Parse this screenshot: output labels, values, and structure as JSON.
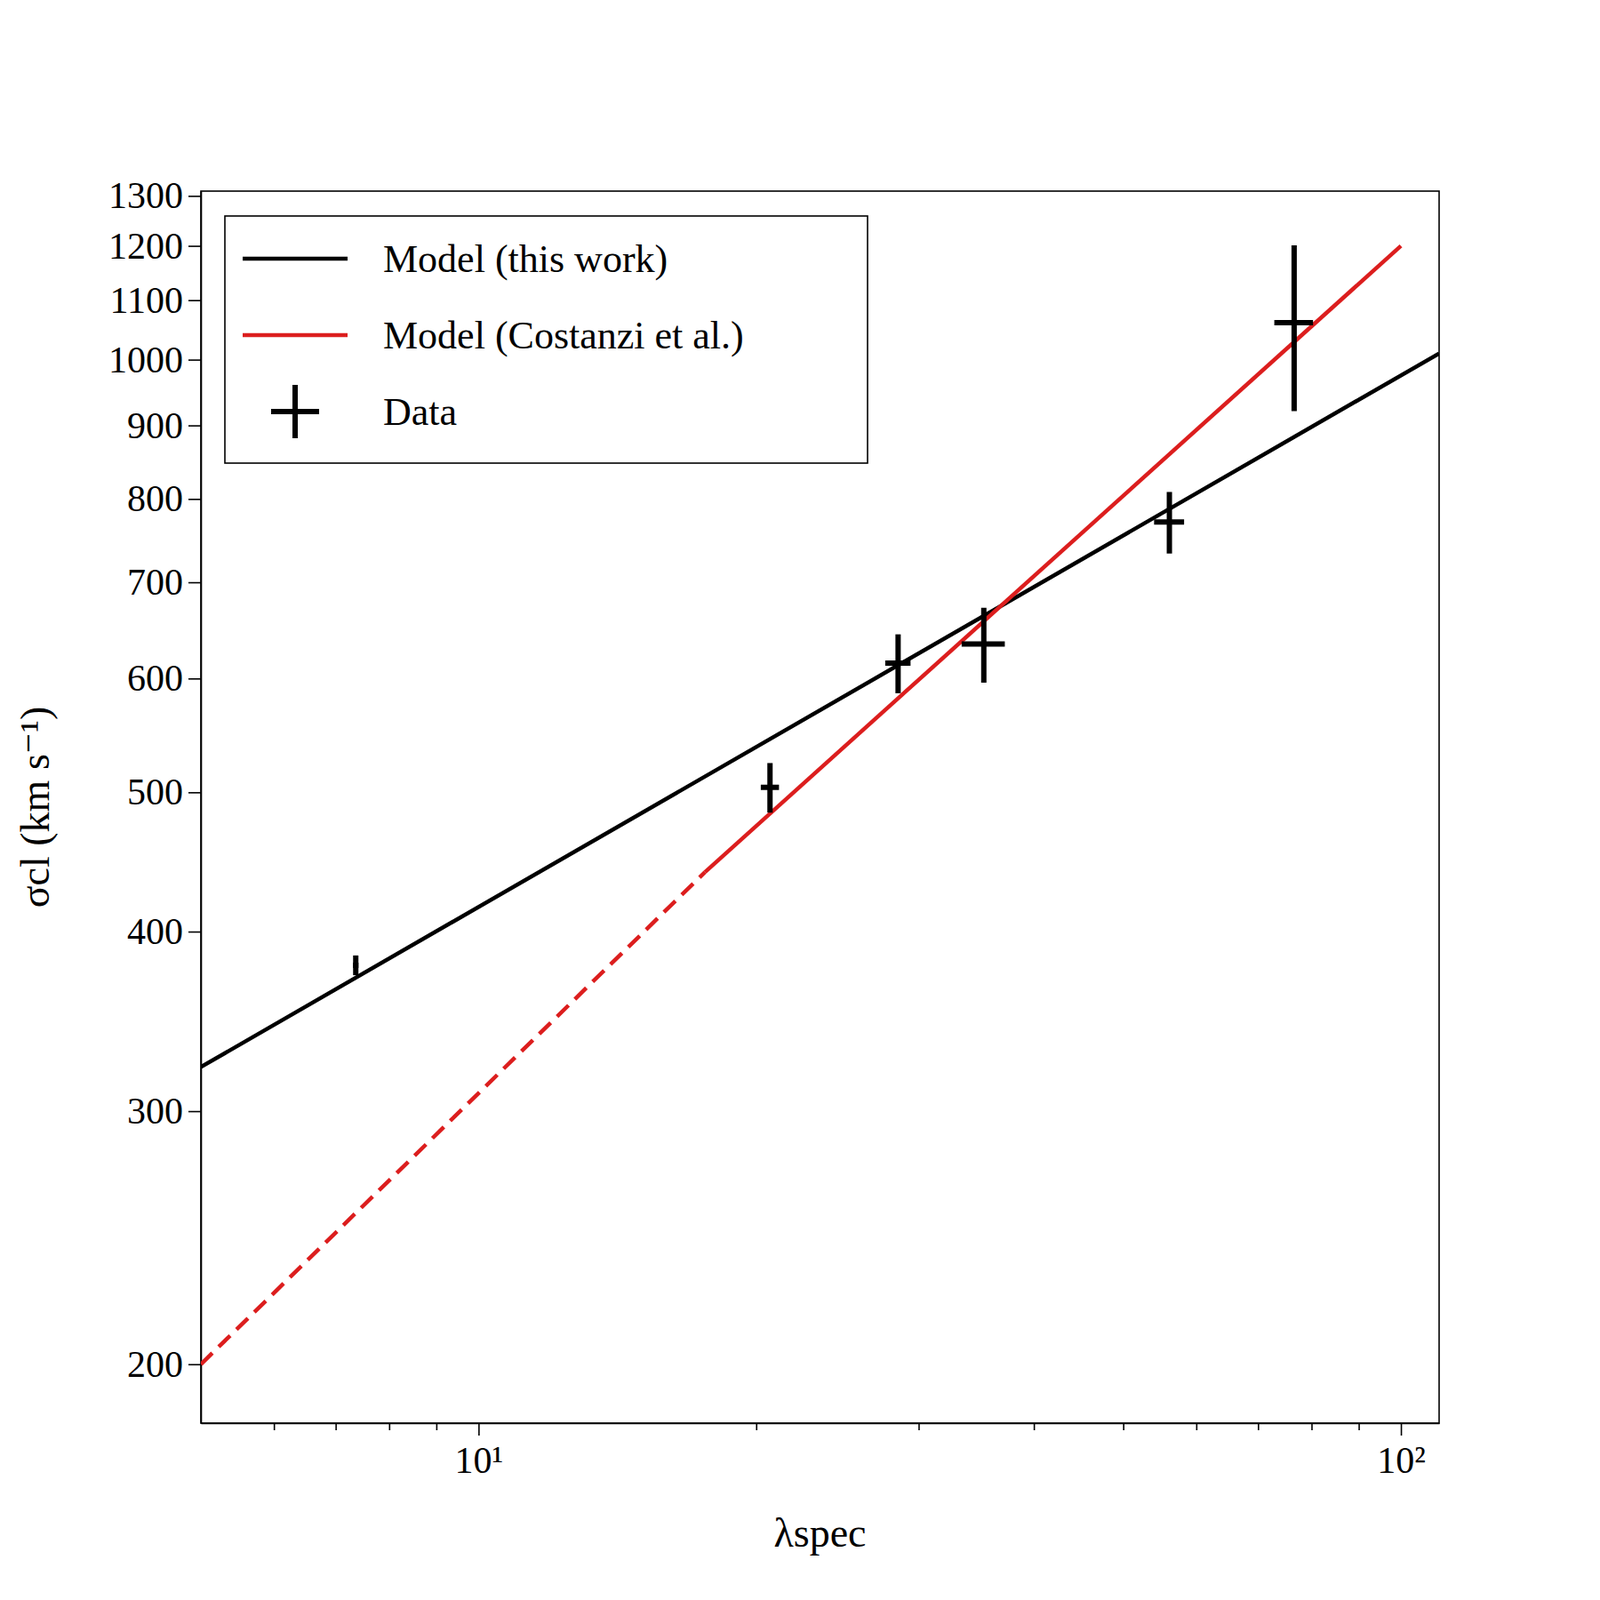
{
  "chart_data": {
    "type": "scatter",
    "xlabel": "λspec",
    "ylabel": "σcl (km s⁻¹)",
    "log": true,
    "legend": "upper left",
    "xlim": [
      5,
      110
    ],
    "ylim": [
      182,
      1310
    ],
    "xticks": [
      {
        "value": 6,
        "label": null
      },
      {
        "value": 7,
        "label": null
      },
      {
        "value": 8,
        "label": null
      },
      {
        "value": 9,
        "label": null
      },
      {
        "value": 10,
        "label": "10¹"
      },
      {
        "value": 20,
        "label": null
      },
      {
        "value": 30,
        "label": null
      },
      {
        "value": 40,
        "label": null
      },
      {
        "value": 50,
        "label": null
      },
      {
        "value": 60,
        "label": null
      },
      {
        "value": 70,
        "label": null
      },
      {
        "value": 80,
        "label": null
      },
      {
        "value": 90,
        "label": null
      },
      {
        "value": 100,
        "label": "10²"
      }
    ],
    "yticks": [
      200,
      300,
      400,
      500,
      600,
      700,
      800,
      900,
      1000,
      1100,
      1200,
      1300
    ],
    "series": [
      {
        "name": "Model (this work)",
        "type": "line",
        "color": "#000000",
        "line_style": "solid",
        "x": [
          5,
          110
        ],
        "values": [
          322,
          1010
        ]
      },
      {
        "name": "Model (Costanzi et al.)",
        "type": "line",
        "color": "#dc1e1e",
        "line_style": "solid",
        "x": [
          17.6,
          100
        ],
        "values": [
          440,
          1200
        ]
      },
      {
        "type": "line",
        "color": "#dc1e1e",
        "line_style": "dashed",
        "x": [
          5,
          17.6
        ],
        "values": [
          200,
          440
        ]
      },
      {
        "name": "Data",
        "type": "scatter",
        "color": "#000000",
        "marker": "plus",
        "x": [
          7.36,
          20.7,
          28.5,
          35.3,
          56.1,
          76.6
        ],
        "values": [
          379,
          504,
          615,
          634,
          771,
          1061
        ],
        "x_err": [
          0.05,
          0.47,
          0.9,
          1.9,
          2.1,
          3.7
        ],
        "y_err": [
          6,
          20,
          29,
          38,
          38,
          140
        ]
      }
    ]
  }
}
